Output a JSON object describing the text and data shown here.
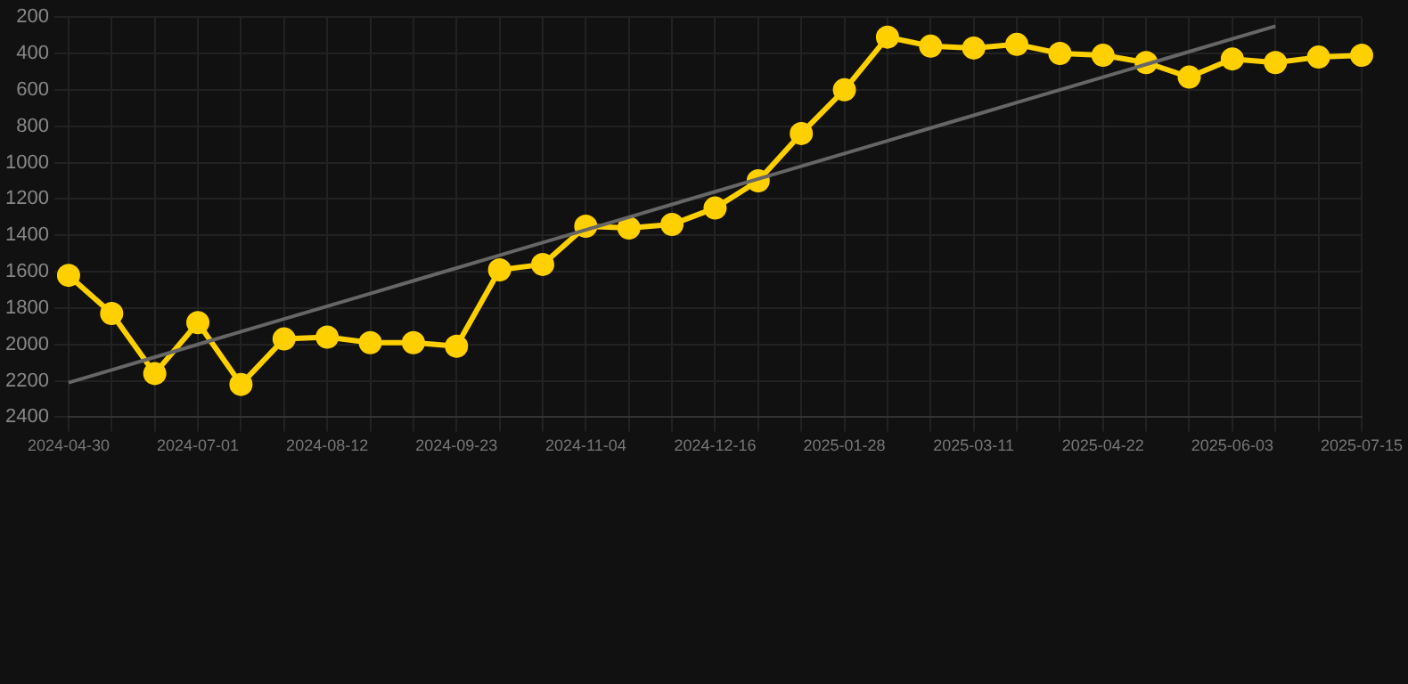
{
  "chart_data": {
    "type": "line",
    "categories": [
      "2024-04-30",
      null,
      null,
      "2024-07-01",
      null,
      null,
      "2024-08-12",
      null,
      null,
      "2024-09-23",
      null,
      null,
      "2024-11-04",
      null,
      null,
      "2024-12-16",
      null,
      null,
      "2025-01-28",
      null,
      null,
      "2025-03-11",
      null,
      null,
      "2025-04-22",
      null,
      null,
      "2025-06-03",
      null,
      null,
      "2025-07-15"
    ],
    "series": [
      {
        "color": "#ffd000",
        "marker": "circle",
        "values": [
          1620,
          1830,
          2160,
          1880,
          2220,
          1970,
          1960,
          1990,
          1990,
          2010,
          1590,
          1560,
          1350,
          1360,
          1340,
          1250,
          1100,
          840,
          600,
          310,
          360,
          370,
          350,
          400,
          410,
          450,
          530,
          430,
          450,
          420,
          410
        ]
      },
      {
        "type": "line",
        "color": "#666666",
        "marker": "none",
        "values": [
          2210,
          2140,
          2070,
          2000,
          1930,
          1860,
          1790,
          1720,
          1650,
          1580,
          1510,
          1440,
          1370,
          1300,
          1230,
          1160,
          1090,
          1020,
          950,
          880,
          810,
          740,
          670,
          600,
          530,
          460,
          390,
          320,
          250,
          null,
          null
        ]
      }
    ],
    "ylim": [
      2400,
      200
    ],
    "yticks": [
      200,
      400,
      600,
      800,
      1000,
      1200,
      1400,
      1600,
      1800,
      2000,
      2200,
      2400
    ],
    "grid": true,
    "legend": false
  }
}
